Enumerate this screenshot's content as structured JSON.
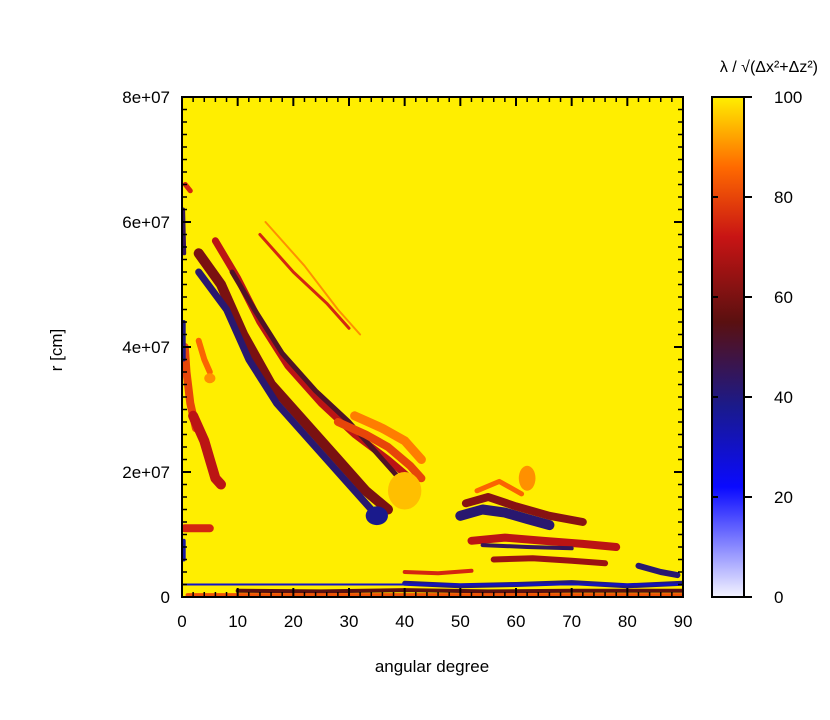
{
  "chart_data": {
    "type": "heatmap",
    "title": "",
    "xlabel": "angular degree",
    "ylabel": "r [cm]",
    "xlim": [
      0,
      90
    ],
    "ylim": [
      0,
      80000000
    ],
    "x_ticks": [
      0,
      10,
      20,
      30,
      40,
      50,
      60,
      70,
      80,
      90
    ],
    "x_tick_labels": [
      "0",
      "10",
      "20",
      "30",
      "40",
      "50",
      "60",
      "70",
      "80",
      "90"
    ],
    "y_ticks": [
      0,
      20000000,
      40000000,
      60000000,
      80000000
    ],
    "y_tick_labels": [
      "0",
      "2e+07",
      "4e+07",
      "6e+07",
      "8e+07"
    ],
    "colorbar": {
      "label": "λ / √(Δx²+Δz²)",
      "range": [
        0,
        100
      ],
      "ticks": [
        0,
        20,
        40,
        60,
        80,
        100
      ],
      "tick_labels": [
        "0",
        "20",
        "40",
        "60",
        "80",
        "100"
      ],
      "colors": [
        {
          "value": 0,
          "color": "#f4f4ff"
        },
        {
          "value": 22,
          "color": "#0a0aff"
        },
        {
          "value": 38,
          "color": "#1a1a8c"
        },
        {
          "value": 55,
          "color": "#5a1010"
        },
        {
          "value": 72,
          "color": "#c81414"
        },
        {
          "value": 86,
          "color": "#ff6a00"
        },
        {
          "value": 100,
          "color": "#ffee00"
        }
      ]
    },
    "background_value": 100,
    "features": [
      {
        "kind": "stripe",
        "value": 60,
        "width": 10,
        "points": [
          [
            3,
            55000000
          ],
          [
            7,
            50000000
          ],
          [
            11,
            42000000
          ],
          [
            16,
            34000000
          ],
          [
            22,
            28000000
          ],
          [
            28,
            22000000
          ],
          [
            33,
            17000000
          ],
          [
            37,
            14000000
          ]
        ]
      },
      {
        "kind": "stripe",
        "value": 42,
        "width": 7,
        "points": [
          [
            3,
            52000000
          ],
          [
            8,
            46000000
          ],
          [
            12,
            38000000
          ],
          [
            17,
            31000000
          ],
          [
            23,
            25000000
          ],
          [
            29,
            19000000
          ],
          [
            34,
            14000000
          ]
        ]
      },
      {
        "kind": "stripe",
        "value": 70,
        "width": 7,
        "points": [
          [
            6,
            57000000
          ],
          [
            10,
            51000000
          ],
          [
            14,
            44000000
          ],
          [
            19,
            37000000
          ],
          [
            25,
            31000000
          ],
          [
            31,
            26000000
          ],
          [
            37,
            22000000
          ],
          [
            41,
            19000000
          ]
        ]
      },
      {
        "kind": "stripe",
        "value": 52,
        "width": 5,
        "points": [
          [
            9,
            52000000
          ],
          [
            13,
            46000000
          ],
          [
            18,
            39000000
          ],
          [
            24,
            33000000
          ],
          [
            30,
            28000000
          ],
          [
            36,
            22000000
          ],
          [
            40,
            18000000
          ]
        ]
      },
      {
        "kind": "stripe",
        "value": 80,
        "width": 8,
        "points": [
          [
            28,
            28000000
          ],
          [
            33,
            26000000
          ],
          [
            37,
            24000000
          ],
          [
            41,
            21000000
          ],
          [
            43,
            19000000
          ]
        ]
      },
      {
        "kind": "stripe",
        "value": 88,
        "width": 9,
        "points": [
          [
            31,
            29000000
          ],
          [
            36,
            27000000
          ],
          [
            40,
            25000000
          ],
          [
            43,
            22000000
          ]
        ]
      },
      {
        "kind": "stripe",
        "value": 75,
        "width": 3,
        "points": [
          [
            14,
            58000000
          ],
          [
            20,
            52000000
          ],
          [
            26,
            47000000
          ],
          [
            30,
            43000000
          ]
        ]
      },
      {
        "kind": "stripe",
        "value": 90,
        "width": 2,
        "points": [
          [
            15,
            60000000
          ],
          [
            22,
            53000000
          ],
          [
            28,
            46000000
          ],
          [
            32,
            42000000
          ]
        ]
      },
      {
        "kind": "stripe",
        "value": 80,
        "width": 8,
        "points": [
          [
            0.5,
            40000000
          ],
          [
            0.8,
            36000000
          ],
          [
            1.5,
            31000000
          ],
          [
            2.5,
            27000000
          ]
        ]
      },
      {
        "kind": "stripe",
        "value": 85,
        "width": 6,
        "points": [
          [
            3,
            41000000
          ],
          [
            4,
            38000000
          ],
          [
            5,
            36000000
          ]
        ]
      },
      {
        "kind": "stripe",
        "value": 70,
        "width": 10,
        "points": [
          [
            2,
            29000000
          ],
          [
            4,
            25000000
          ],
          [
            5,
            22000000
          ],
          [
            6,
            19000000
          ],
          [
            7,
            18000000
          ]
        ]
      },
      {
        "kind": "stripe",
        "value": 40,
        "width": 4,
        "points": [
          [
            0.3,
            44000000
          ],
          [
            0.3,
            38000000
          ]
        ]
      },
      {
        "kind": "stripe",
        "value": 45,
        "width": 4,
        "points": [
          [
            0.2,
            62000000
          ],
          [
            0.4,
            55000000
          ]
        ]
      },
      {
        "kind": "stripe",
        "value": 75,
        "width": 5,
        "points": [
          [
            0.6,
            66000000
          ],
          [
            1.5,
            65000000
          ]
        ]
      },
      {
        "kind": "stripe",
        "value": 75,
        "width": 8,
        "points": [
          [
            0.5,
            11000000
          ],
          [
            5,
            11000000
          ]
        ]
      },
      {
        "kind": "stripe",
        "value": 35,
        "width": 4,
        "points": [
          [
            0.3,
            9000000
          ],
          [
            0.3,
            6000000
          ]
        ]
      },
      {
        "kind": "stripe",
        "value": 42,
        "width": 10,
        "points": [
          [
            50,
            13000000
          ],
          [
            54,
            14000000
          ],
          [
            58,
            13500000
          ],
          [
            62,
            12500000
          ],
          [
            66,
            11500000
          ]
        ]
      },
      {
        "kind": "stripe",
        "value": 62,
        "width": 8,
        "points": [
          [
            51,
            15000000
          ],
          [
            55,
            16000000
          ],
          [
            60,
            14500000
          ],
          [
            66,
            13000000
          ],
          [
            72,
            12000000
          ]
        ]
      },
      {
        "kind": "stripe",
        "value": 85,
        "width": 5,
        "points": [
          [
            53,
            17000000
          ],
          [
            57,
            18500000
          ],
          [
            61,
            16500000
          ]
        ]
      },
      {
        "kind": "stripe",
        "value": 70,
        "width": 8,
        "points": [
          [
            52,
            9000000
          ],
          [
            58,
            9500000
          ],
          [
            65,
            9000000
          ],
          [
            72,
            8500000
          ],
          [
            78,
            8000000
          ]
        ]
      },
      {
        "kind": "stripe",
        "value": 45,
        "width": 4,
        "points": [
          [
            54,
            8300000
          ],
          [
            62,
            8000000
          ],
          [
            70,
            7800000
          ]
        ]
      },
      {
        "kind": "stripe",
        "value": 65,
        "width": 6,
        "points": [
          [
            56,
            6000000
          ],
          [
            63,
            6200000
          ],
          [
            70,
            5800000
          ],
          [
            76,
            5400000
          ]
        ]
      },
      {
        "kind": "stripe",
        "value": 42,
        "width": 6,
        "points": [
          [
            82,
            5000000
          ],
          [
            86,
            4000000
          ],
          [
            89,
            3500000
          ]
        ]
      },
      {
        "kind": "stripe",
        "value": 75,
        "width": 4,
        "points": [
          [
            40,
            4000000
          ],
          [
            46,
            3800000
          ],
          [
            52,
            4200000
          ]
        ]
      },
      {
        "kind": "stripe",
        "value": 40,
        "width": 5,
        "points": [
          [
            40,
            2200000
          ],
          [
            50,
            1800000
          ],
          [
            60,
            2000000
          ],
          [
            70,
            2300000
          ],
          [
            80,
            1800000
          ],
          [
            90,
            2200000
          ]
        ]
      },
      {
        "kind": "stripe",
        "value": 55,
        "width": 4,
        "points": [
          [
            10,
            1000000
          ],
          [
            25,
            900000
          ],
          [
            40,
            1100000
          ],
          [
            55,
            900000
          ],
          [
            70,
            1000000
          ],
          [
            90,
            1000000
          ]
        ]
      },
      {
        "kind": "stripe",
        "value": 82,
        "width": 4,
        "points": [
          [
            1,
            300000
          ],
          [
            20,
            300000
          ],
          [
            40,
            300000
          ],
          [
            60,
            300000
          ],
          [
            90,
            300000
          ]
        ]
      },
      {
        "kind": "stripe",
        "value": 30,
        "width": 2,
        "points": [
          [
            0,
            2000000
          ],
          [
            90,
            2000000
          ]
        ]
      },
      {
        "kind": "blob",
        "value": 38,
        "x": 35,
        "y": 13000000,
        "rx": 2,
        "ry": 1500000
      },
      {
        "kind": "blob",
        "value": 95,
        "x": 40,
        "y": 17000000,
        "rx": 3,
        "ry": 3000000
      },
      {
        "kind": "blob",
        "value": 90,
        "x": 62,
        "y": 19000000,
        "rx": 1.5,
        "ry": 2000000
      },
      {
        "kind": "blob",
        "value": 90,
        "x": 5,
        "y": 35000000,
        "rx": 1,
        "ry": 800000
      }
    ]
  }
}
